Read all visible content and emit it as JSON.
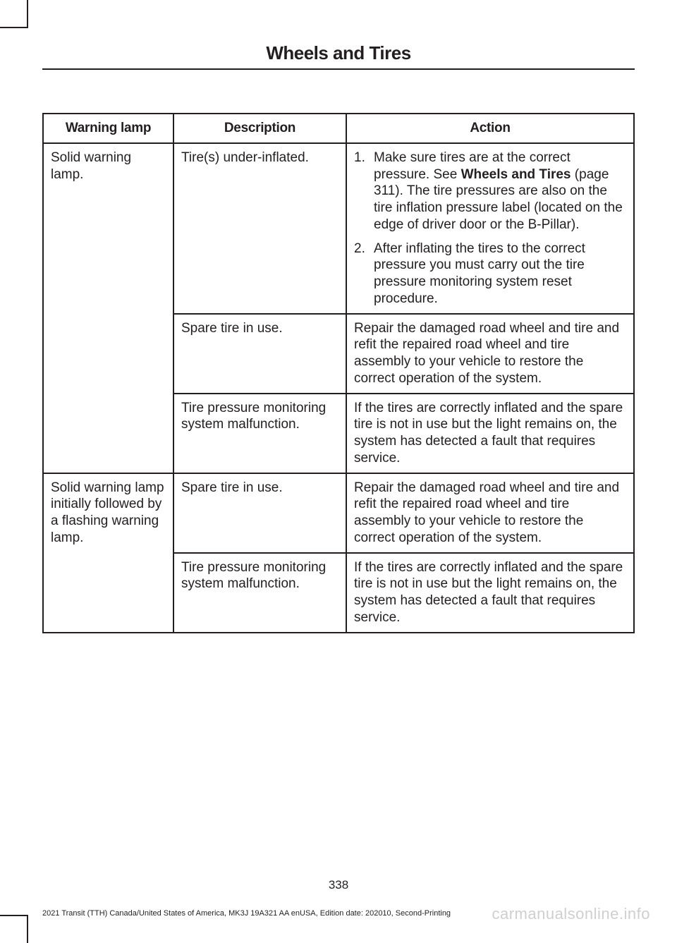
{
  "header": {
    "section_title": "Wheels and Tires"
  },
  "table": {
    "headers": {
      "col1": "Warning lamp",
      "col2": "Description",
      "col3": "Action"
    },
    "rows": {
      "r1": {
        "warning": "Solid warning lamp.",
        "desc": "Tire(s) under-inflated.",
        "action1_pre": "Make sure tires are at the correct pressure.  See ",
        "action1_bold": "Wheels and Tires",
        "action1_post": " (page 311).  The tire pressures are also on the tire inflation pressure label (located on the edge of driver door or the B-Pillar).",
        "action2": "After inflating the tires to the correct pressure you must carry out the tire pressure monitoring system reset procedure."
      },
      "r2": {
        "desc": "Spare tire in use.",
        "action": "Repair the damaged road wheel and tire and refit the repaired road wheel and tire assembly to your vehicle to restore the correct operation of the system."
      },
      "r3": {
        "desc": "Tire pressure monitoring system malfunction.",
        "action": "If the tires are correctly inflated and the spare tire is not in use but the light remains on, the system has detected a fault that requires service."
      },
      "r4": {
        "warning": "Solid warning lamp initially followed by a flashing warning lamp.",
        "desc": "Spare tire in use.",
        "action": "Repair the damaged road wheel and tire and refit the repaired road wheel and tire assembly to your vehicle to restore the correct operation of the system."
      },
      "r5": {
        "desc": "Tire pressure monitoring system malfunction.",
        "action": "If the tires are correctly inflated and the spare tire is not in use but the light remains on, the system has detected a fault that requires service."
      }
    }
  },
  "footer": {
    "page_number": "338",
    "doc_info": "2021 Transit (TTH) Canada/United States of America, MK3J 19A321 AA enUSA, Edition date: 202010, Second-Printing",
    "watermark": "carmanualsonline.info"
  }
}
